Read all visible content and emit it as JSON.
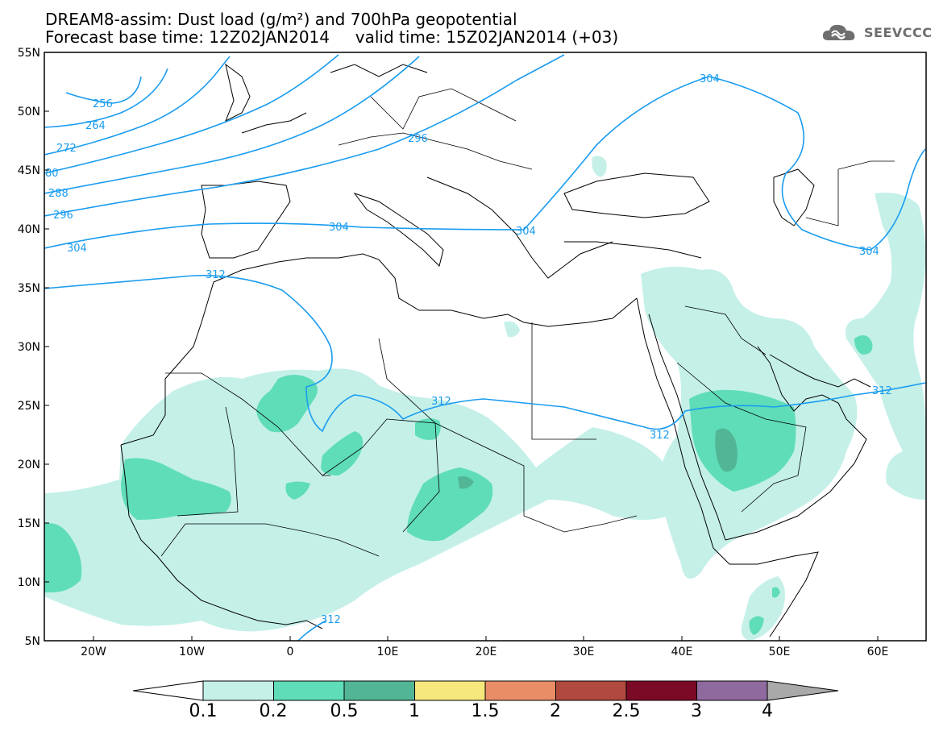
{
  "header": {
    "line1": "DREAM8-assim: Dust load (g/m²) and 700hPa geopotential",
    "line2": "Forecast base time: 12Z02JAN2014     valid time: 15Z02JAN2014 (+03)"
  },
  "logo": {
    "text": "SEEVCCC",
    "icon": "cloud-icon"
  },
  "map": {
    "lat_labels": [
      "55N",
      "50N",
      "45N",
      "40N",
      "35N",
      "30N",
      "25N",
      "20N",
      "15N",
      "10N",
      "5N"
    ],
    "lon_labels": [
      "20W",
      "10W",
      "0",
      "10E",
      "20E",
      "30E",
      "40E",
      "50E",
      "60E"
    ],
    "contour_labels": [
      "256",
      "264",
      "272",
      "80",
      "288",
      "296",
      "304",
      "312",
      "296",
      "304",
      "304",
      "304",
      "312",
      "312",
      "312",
      "312"
    ],
    "colors": {
      "contour": "#1a9cf0",
      "coast": "#000000",
      "dust_0_1": "#c4f0e8",
      "dust_0_2": "#5fddb8",
      "dust_0_5": "#52b696"
    }
  },
  "colorbar": {
    "labels": [
      "0.1",
      "0.2",
      "0.5",
      "1",
      "1.5",
      "2",
      "2.5",
      "3",
      "4"
    ],
    "colors": [
      "#c4f0e8",
      "#5fddb8",
      "#52b696",
      "#f6e87c",
      "#e98d66",
      "#b0493e",
      "#7b0a26",
      "#8e6a9e"
    ],
    "under_color": "#ffffff",
    "over_color": "#a9a9a9"
  }
}
